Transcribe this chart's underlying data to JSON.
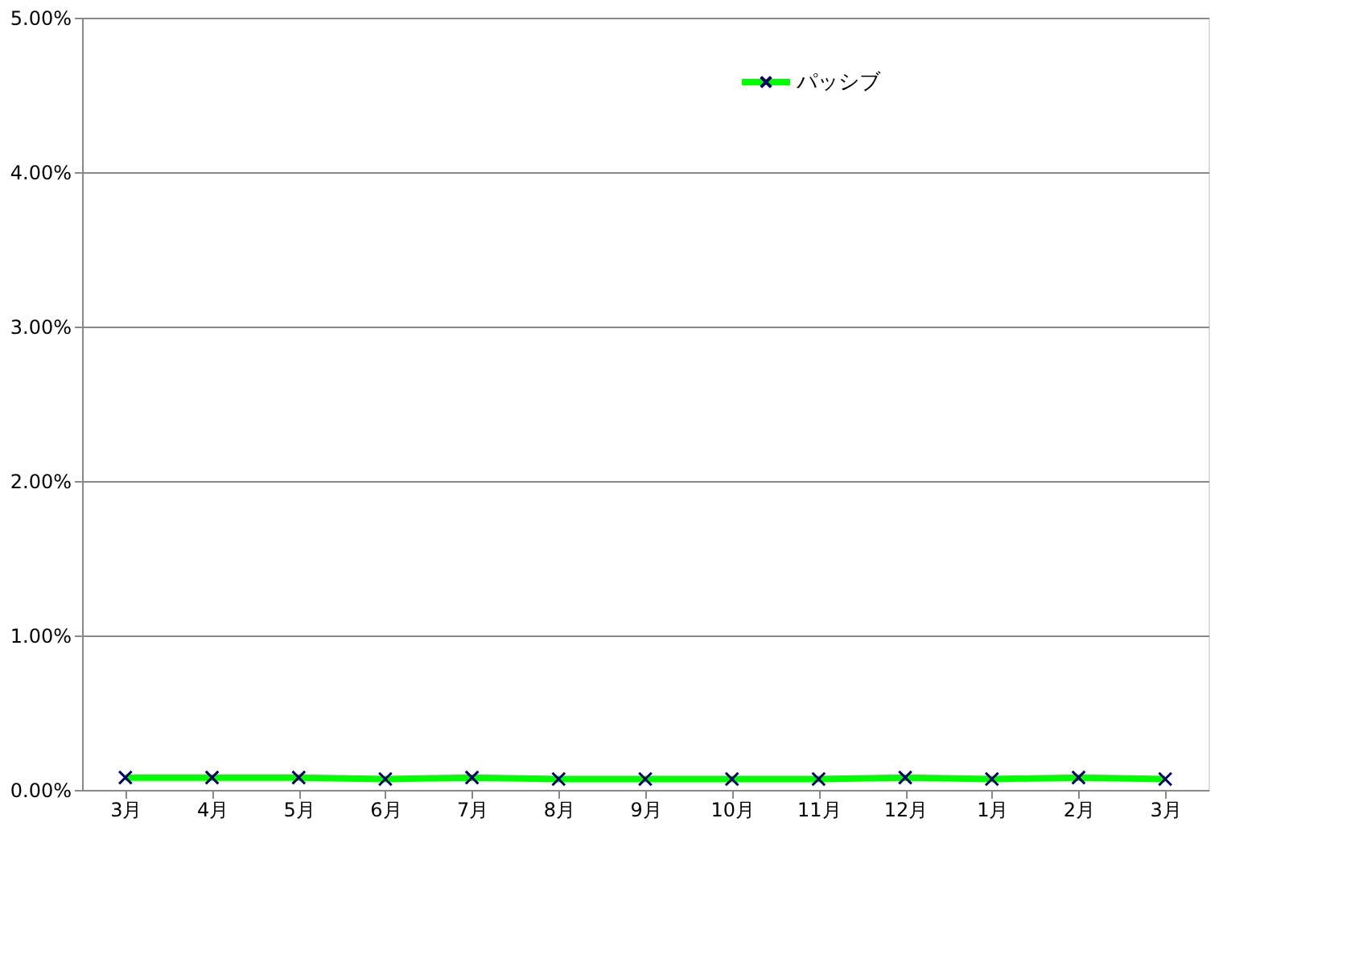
{
  "chart_data": {
    "type": "line",
    "categories": [
      "3月",
      "4月",
      "5月",
      "6月",
      "7月",
      "8月",
      "9月",
      "10月",
      "11月",
      "12月",
      "1月",
      "2月",
      "3月"
    ],
    "series": [
      {
        "name": "パッシブ",
        "color": "#00ff00",
        "values": [
          0.08,
          0.08,
          0.08,
          0.07,
          0.08,
          0.07,
          0.07,
          0.07,
          0.07,
          0.08,
          0.07,
          0.08,
          0.07
        ]
      }
    ],
    "ylim": [
      0,
      5
    ],
    "yticks": [
      {
        "value": 0,
        "label": "0.00%"
      },
      {
        "value": 1,
        "label": "1.00%"
      },
      {
        "value": 2,
        "label": "2.00%"
      },
      {
        "value": 3,
        "label": "3.00%"
      },
      {
        "value": 4,
        "label": "4.00%"
      },
      {
        "value": 5,
        "label": "5.00%"
      }
    ],
    "grid": "y",
    "legend": "top right",
    "marker": "cross",
    "line_style": "solid"
  }
}
